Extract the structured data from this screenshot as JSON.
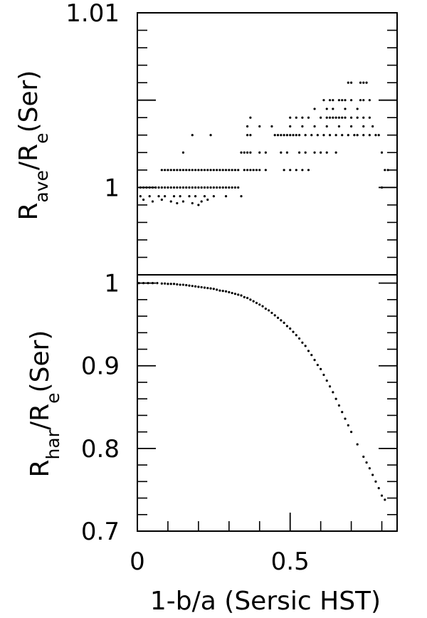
{
  "chart_data": [
    {
      "type": "scatter",
      "panel": "top",
      "ylabel": {
        "base": "R",
        "sub1": "ave",
        "slash": "/R",
        "sub2": "e",
        "tail": "(Ser)"
      },
      "xlim": [
        0,
        0.85
      ],
      "ylim": [
        0.995,
        1.01
      ],
      "yticks_labeled": [
        {
          "value": 1.01,
          "label": "1.01"
        },
        {
          "value": 1.0,
          "label": "1"
        }
      ],
      "yticks_major": [
        0.995,
        1.0,
        1.005,
        1.01
      ],
      "yticks_minor": [
        0.996,
        0.997,
        0.998,
        0.999,
        1.001,
        1.002,
        1.003,
        1.004,
        1.006,
        1.007,
        1.008,
        1.009
      ],
      "points": [
        [
          0.01,
          1.0
        ],
        [
          0.02,
          1.0
        ],
        [
          0.03,
          1.0
        ],
        [
          0.04,
          1.0
        ],
        [
          0.05,
          1.0
        ],
        [
          0.06,
          1.0
        ],
        [
          0.07,
          1.0
        ],
        [
          0.08,
          1.0
        ],
        [
          0.09,
          1.0
        ],
        [
          0.1,
          1.0
        ],
        [
          0.11,
          1.0
        ],
        [
          0.12,
          1.0
        ],
        [
          0.13,
          1.0
        ],
        [
          0.14,
          1.0
        ],
        [
          0.15,
          1.0
        ],
        [
          0.16,
          1.0
        ],
        [
          0.17,
          1.0
        ],
        [
          0.18,
          1.0
        ],
        [
          0.19,
          1.0
        ],
        [
          0.2,
          1.0
        ],
        [
          0.21,
          1.0
        ],
        [
          0.22,
          1.0
        ],
        [
          0.23,
          1.0
        ],
        [
          0.24,
          1.0
        ],
        [
          0.25,
          1.0
        ],
        [
          0.26,
          1.0
        ],
        [
          0.27,
          1.0
        ],
        [
          0.28,
          1.0
        ],
        [
          0.29,
          1.0
        ],
        [
          0.3,
          1.0
        ],
        [
          0.31,
          1.0
        ],
        [
          0.32,
          1.0
        ],
        [
          0.33,
          1.0
        ],
        [
          0.8,
          1.0
        ],
        [
          0.01,
          0.9995
        ],
        [
          0.04,
          0.9995
        ],
        [
          0.07,
          0.9995
        ],
        [
          0.09,
          0.9995
        ],
        [
          0.12,
          0.9995
        ],
        [
          0.14,
          0.9995
        ],
        [
          0.17,
          0.9995
        ],
        [
          0.19,
          0.9995
        ],
        [
          0.22,
          0.9995
        ],
        [
          0.25,
          0.9995
        ],
        [
          0.29,
          0.9995
        ],
        [
          0.34,
          0.9995
        ],
        [
          0.02,
          0.9993
        ],
        [
          0.05,
          0.9992
        ],
        [
          0.08,
          0.9993
        ],
        [
          0.11,
          0.9992
        ],
        [
          0.13,
          0.9991
        ],
        [
          0.15,
          0.9992
        ],
        [
          0.18,
          0.9991
        ],
        [
          0.2,
          0.999
        ],
        [
          0.21,
          0.9992
        ],
        [
          0.23,
          0.9993
        ],
        [
          0.08,
          1.001
        ],
        [
          0.09,
          1.001
        ],
        [
          0.1,
          1.001
        ],
        [
          0.11,
          1.001
        ],
        [
          0.12,
          1.001
        ],
        [
          0.13,
          1.001
        ],
        [
          0.14,
          1.001
        ],
        [
          0.15,
          1.001
        ],
        [
          0.16,
          1.001
        ],
        [
          0.17,
          1.001
        ],
        [
          0.18,
          1.001
        ],
        [
          0.19,
          1.001
        ],
        [
          0.2,
          1.001
        ],
        [
          0.21,
          1.001
        ],
        [
          0.22,
          1.001
        ],
        [
          0.23,
          1.001
        ],
        [
          0.24,
          1.001
        ],
        [
          0.25,
          1.001
        ],
        [
          0.26,
          1.001
        ],
        [
          0.27,
          1.001
        ],
        [
          0.28,
          1.001
        ],
        [
          0.29,
          1.001
        ],
        [
          0.3,
          1.001
        ],
        [
          0.31,
          1.001
        ],
        [
          0.32,
          1.001
        ],
        [
          0.33,
          1.001
        ],
        [
          0.35,
          1.001
        ],
        [
          0.36,
          1.001
        ],
        [
          0.37,
          1.001
        ],
        [
          0.38,
          1.001
        ],
        [
          0.39,
          1.001
        ],
        [
          0.4,
          1.001
        ],
        [
          0.42,
          1.001
        ],
        [
          0.48,
          1.001
        ],
        [
          0.5,
          1.001
        ],
        [
          0.52,
          1.001
        ],
        [
          0.54,
          1.001
        ],
        [
          0.56,
          1.001
        ],
        [
          0.81,
          1.001
        ],
        [
          0.82,
          1.001
        ],
        [
          0.15,
          1.002
        ],
        [
          0.34,
          1.002
        ],
        [
          0.35,
          1.002
        ],
        [
          0.36,
          1.002
        ],
        [
          0.37,
          1.002
        ],
        [
          0.4,
          1.002
        ],
        [
          0.42,
          1.002
        ],
        [
          0.47,
          1.002
        ],
        [
          0.49,
          1.002
        ],
        [
          0.53,
          1.002
        ],
        [
          0.55,
          1.002
        ],
        [
          0.58,
          1.002
        ],
        [
          0.6,
          1.002
        ],
        [
          0.62,
          1.002
        ],
        [
          0.65,
          1.002
        ],
        [
          0.8,
          1.002
        ],
        [
          0.18,
          1.003
        ],
        [
          0.24,
          1.003
        ],
        [
          0.36,
          1.003
        ],
        [
          0.37,
          1.003
        ],
        [
          0.45,
          1.003
        ],
        [
          0.46,
          1.003
        ],
        [
          0.47,
          1.003
        ],
        [
          0.48,
          1.003
        ],
        [
          0.49,
          1.003
        ],
        [
          0.5,
          1.003
        ],
        [
          0.51,
          1.003
        ],
        [
          0.52,
          1.003
        ],
        [
          0.53,
          1.003
        ],
        [
          0.55,
          1.003
        ],
        [
          0.57,
          1.003
        ],
        [
          0.59,
          1.003
        ],
        [
          0.61,
          1.003
        ],
        [
          0.63,
          1.003
        ],
        [
          0.65,
          1.003
        ],
        [
          0.67,
          1.003
        ],
        [
          0.69,
          1.003
        ],
        [
          0.71,
          1.003
        ],
        [
          0.72,
          1.003
        ],
        [
          0.74,
          1.003
        ],
        [
          0.76,
          1.003
        ],
        [
          0.78,
          1.003
        ],
        [
          0.79,
          1.003
        ],
        [
          0.36,
          1.0035
        ],
        [
          0.4,
          1.0035
        ],
        [
          0.44,
          1.0035
        ],
        [
          0.5,
          1.0035
        ],
        [
          0.54,
          1.0035
        ],
        [
          0.58,
          1.0035
        ],
        [
          0.62,
          1.0035
        ],
        [
          0.66,
          1.0035
        ],
        [
          0.7,
          1.0035
        ],
        [
          0.74,
          1.0035
        ],
        [
          0.77,
          1.0035
        ],
        [
          0.37,
          1.004
        ],
        [
          0.5,
          1.004
        ],
        [
          0.52,
          1.004
        ],
        [
          0.54,
          1.004
        ],
        [
          0.56,
          1.004
        ],
        [
          0.6,
          1.004
        ],
        [
          0.62,
          1.004
        ],
        [
          0.63,
          1.004
        ],
        [
          0.64,
          1.004
        ],
        [
          0.65,
          1.004
        ],
        [
          0.66,
          1.004
        ],
        [
          0.67,
          1.004
        ],
        [
          0.68,
          1.004
        ],
        [
          0.7,
          1.004
        ],
        [
          0.72,
          1.004
        ],
        [
          0.74,
          1.004
        ],
        [
          0.76,
          1.004
        ],
        [
          0.58,
          1.0045
        ],
        [
          0.62,
          1.0045
        ],
        [
          0.64,
          1.0045
        ],
        [
          0.68,
          1.0045
        ],
        [
          0.72,
          1.0045
        ],
        [
          0.61,
          1.005
        ],
        [
          0.63,
          1.005
        ],
        [
          0.64,
          1.005
        ],
        [
          0.66,
          1.005
        ],
        [
          0.67,
          1.005
        ],
        [
          0.68,
          1.005
        ],
        [
          0.7,
          1.005
        ],
        [
          0.73,
          1.005
        ],
        [
          0.74,
          1.005
        ],
        [
          0.76,
          1.005
        ],
        [
          0.69,
          1.006
        ],
        [
          0.7,
          1.006
        ],
        [
          0.73,
          1.006
        ],
        [
          0.74,
          1.006
        ],
        [
          0.75,
          1.006
        ]
      ]
    },
    {
      "type": "scatter",
      "panel": "bottom",
      "xlabel": "1-b/a (Sersic HST)",
      "ylabel": {
        "base": "R",
        "sub1": "har",
        "slash": "/R",
        "sub2": "e",
        "tail": "(Ser)"
      },
      "xlim": [
        0,
        0.85
      ],
      "ylim": [
        0.7,
        1.01
      ],
      "xticks_labeled": [
        {
          "value": 0,
          "label": "0"
        },
        {
          "value": 0.5,
          "label": "0.5"
        }
      ],
      "xticks_major": [
        0,
        0.5
      ],
      "xticks_minor": [
        0.1,
        0.2,
        0.3,
        0.4,
        0.6,
        0.7,
        0.8
      ],
      "yticks_labeled": [
        {
          "value": 1.0,
          "label": "1"
        },
        {
          "value": 0.9,
          "label": "0.9"
        },
        {
          "value": 0.8,
          "label": "0.8"
        },
        {
          "value": 0.7,
          "label": "0.7"
        }
      ],
      "yticks_major": [
        0.7,
        0.8,
        0.9,
        1.0
      ],
      "yticks_minor": [
        0.72,
        0.74,
        0.76,
        0.78,
        0.82,
        0.84,
        0.86,
        0.88,
        0.92,
        0.94,
        0.96,
        0.98
      ],
      "points": [
        [
          0.005,
          1.0
        ],
        [
          0.02,
          1.0
        ],
        [
          0.035,
          1.0
        ],
        [
          0.05,
          1.0
        ],
        [
          0.065,
          1.0
        ],
        [
          0.08,
          0.9995
        ],
        [
          0.09,
          0.9995
        ],
        [
          0.1,
          0.999
        ],
        [
          0.11,
          0.999
        ],
        [
          0.12,
          0.999
        ],
        [
          0.13,
          0.9985
        ],
        [
          0.14,
          0.998
        ],
        [
          0.15,
          0.998
        ],
        [
          0.16,
          0.9975
        ],
        [
          0.17,
          0.997
        ],
        [
          0.18,
          0.9965
        ],
        [
          0.19,
          0.996
        ],
        [
          0.2,
          0.9955
        ],
        [
          0.21,
          0.995
        ],
        [
          0.22,
          0.9945
        ],
        [
          0.23,
          0.994
        ],
        [
          0.24,
          0.9935
        ],
        [
          0.25,
          0.993
        ],
        [
          0.26,
          0.992
        ],
        [
          0.27,
          0.991
        ],
        [
          0.28,
          0.9905
        ],
        [
          0.29,
          0.99
        ],
        [
          0.3,
          0.989
        ],
        [
          0.31,
          0.988
        ],
        [
          0.32,
          0.987
        ],
        [
          0.33,
          0.986
        ],
        [
          0.34,
          0.985
        ],
        [
          0.35,
          0.983
        ],
        [
          0.36,
          0.982
        ],
        [
          0.37,
          0.98
        ],
        [
          0.38,
          0.978
        ],
        [
          0.39,
          0.976
        ],
        [
          0.4,
          0.974
        ],
        [
          0.41,
          0.972
        ],
        [
          0.42,
          0.969
        ],
        [
          0.43,
          0.967
        ],
        [
          0.44,
          0.964
        ],
        [
          0.45,
          0.961
        ],
        [
          0.46,
          0.958
        ],
        [
          0.47,
          0.955
        ],
        [
          0.48,
          0.952
        ],
        [
          0.49,
          0.948
        ],
        [
          0.5,
          0.945
        ],
        [
          0.51,
          0.941
        ],
        [
          0.52,
          0.937
        ],
        [
          0.53,
          0.933
        ],
        [
          0.54,
          0.928
        ],
        [
          0.55,
          0.924
        ],
        [
          0.56,
          0.918
        ],
        [
          0.57,
          0.913
        ],
        [
          0.58,
          0.907
        ],
        [
          0.59,
          0.901
        ],
        [
          0.6,
          0.896
        ],
        [
          0.61,
          0.889
        ],
        [
          0.62,
          0.882
        ],
        [
          0.63,
          0.875
        ],
        [
          0.64,
          0.868
        ],
        [
          0.65,
          0.86
        ],
        [
          0.66,
          0.852
        ],
        [
          0.67,
          0.844
        ],
        [
          0.68,
          0.836
        ],
        [
          0.69,
          0.828
        ],
        [
          0.7,
          0.82
        ],
        [
          0.72,
          0.805
        ],
        [
          0.74,
          0.79
        ],
        [
          0.75,
          0.783
        ],
        [
          0.76,
          0.776
        ],
        [
          0.77,
          0.768
        ],
        [
          0.78,
          0.76
        ],
        [
          0.79,
          0.752
        ],
        [
          0.8,
          0.743
        ],
        [
          0.81,
          0.738
        ]
      ]
    }
  ]
}
